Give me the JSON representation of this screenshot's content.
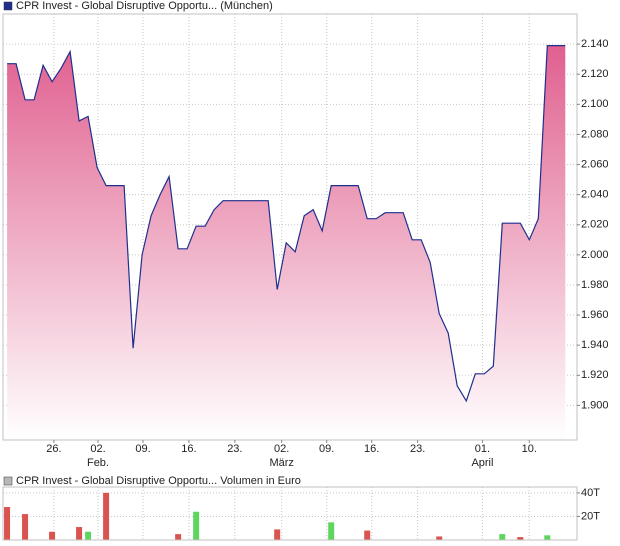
{
  "chart_data": [
    {
      "type": "area",
      "x": [
        0,
        1,
        2,
        3,
        4,
        5,
        6,
        7,
        8,
        9,
        10,
        11,
        12,
        13,
        14,
        15,
        16,
        17,
        18,
        19,
        20,
        21,
        22,
        23,
        24,
        25,
        26,
        27,
        28,
        29,
        30,
        31,
        32,
        33,
        34,
        35,
        36,
        37,
        38,
        39,
        40,
        41,
        42,
        43,
        44,
        45,
        46,
        47,
        48,
        49,
        50,
        51,
        52,
        53,
        54,
        55,
        56,
        57,
        58,
        59,
        60,
        61,
        62
      ],
      "series": [
        {
          "name": "CPR Invest - Global Disruptive Opportu... (München)",
          "color": "#1f2f8f",
          "fill_color": "#e0608f",
          "values": [
            2.127,
            2.127,
            2.103,
            2.103,
            2.126,
            2.115,
            2.124,
            2.135,
            2.089,
            2.092,
            2.058,
            2.046,
            2.046,
            2.046,
            1.938,
            2.0,
            2.026,
            2.04,
            2.052,
            2.004,
            2.004,
            2.019,
            2.019,
            2.03,
            2.036,
            2.036,
            2.036,
            2.036,
            2.036,
            2.036,
            1.977,
            2.008,
            2.002,
            2.026,
            2.03,
            2.016,
            2.046,
            2.046,
            2.046,
            2.046,
            2.024,
            2.024,
            2.028,
            2.028,
            2.028,
            2.01,
            2.01,
            1.995,
            1.961,
            1.948,
            1.913,
            1.903,
            1.921,
            1.921,
            1.926,
            2.021,
            2.021,
            2.021,
            2.01,
            2.024,
            2.139,
            2.139,
            2.139
          ]
        }
      ],
      "xlim": [
        -0.45,
        63.3
      ],
      "xticks": [
        {
          "value": 5.2,
          "label": "26."
        },
        {
          "value": 10.1,
          "label": "02."
        },
        {
          "value": 15.1,
          "label": "09."
        },
        {
          "value": 20.2,
          "label": "16."
        },
        {
          "value": 25.3,
          "label": "23."
        },
        {
          "value": 30.5,
          "label": "02."
        },
        {
          "value": 35.5,
          "label": "09."
        },
        {
          "value": 40.5,
          "label": "16."
        },
        {
          "value": 45.6,
          "label": "23."
        },
        {
          "value": 52.8,
          "label": "01."
        },
        {
          "value": 58,
          "label": "10."
        }
      ],
      "month_labels": [
        {
          "value": 10.1,
          "label": "Feb."
        },
        {
          "value": 30.5,
          "label": "März"
        },
        {
          "value": 52.8,
          "label": "April"
        }
      ],
      "ylim": [
        1.877,
        2.16
      ],
      "yticks": [
        {
          "value": 1.9,
          "label": "1.900"
        },
        {
          "value": 1.92,
          "label": "1.920"
        },
        {
          "value": 1.94,
          "label": "1.940"
        },
        {
          "value": 1.96,
          "label": "1.960"
        },
        {
          "value": 1.98,
          "label": "1.980"
        },
        {
          "value": 2.0,
          "label": "2.000"
        },
        {
          "value": 2.02,
          "label": "2.020"
        },
        {
          "value": 2.04,
          "label": "2.040"
        },
        {
          "value": 2.06,
          "label": "2.060"
        },
        {
          "value": 2.08,
          "label": "2.080"
        },
        {
          "value": 2.1,
          "label": "2.100"
        },
        {
          "value": 2.12,
          "label": "2.120"
        },
        {
          "value": 2.14,
          "label": "2.140"
        }
      ],
      "grid": true
    },
    {
      "type": "bar",
      "name": "CPR Invest - Global Disruptive Opportu... Volumen in Euro",
      "legend_color": "#b8b8b8",
      "x": [
        0,
        2,
        5,
        8,
        9,
        11,
        19,
        21,
        30,
        36,
        40,
        48,
        55,
        57,
        60
      ],
      "values": [
        28000,
        22000,
        7000,
        11000,
        7000,
        40000,
        5000,
        24000,
        9000,
        15000,
        8000,
        3000,
        5000,
        2500,
        4000
      ],
      "colors": [
        "#d9534f",
        "#d9534f",
        "#d9534f",
        "#d9534f",
        "#5cd65c",
        "#d9534f",
        "#d9534f",
        "#5cd65c",
        "#d9534f",
        "#5cd65c",
        "#d9534f",
        "#d9534f",
        "#5cd65c",
        "#d9534f",
        "#5cd65c"
      ],
      "xlim": [
        -0.45,
        63.3
      ],
      "xticks": [
        5.2,
        10.1,
        15.1,
        20.2,
        25.3,
        30.5,
        35.5,
        40.5,
        45.6,
        52.8,
        58
      ],
      "ylim": [
        0,
        45000
      ],
      "yticks": [
        {
          "value": 20000,
          "label": "20T"
        },
        {
          "value": 40000,
          "label": "40T"
        }
      ],
      "grid": true
    }
  ]
}
